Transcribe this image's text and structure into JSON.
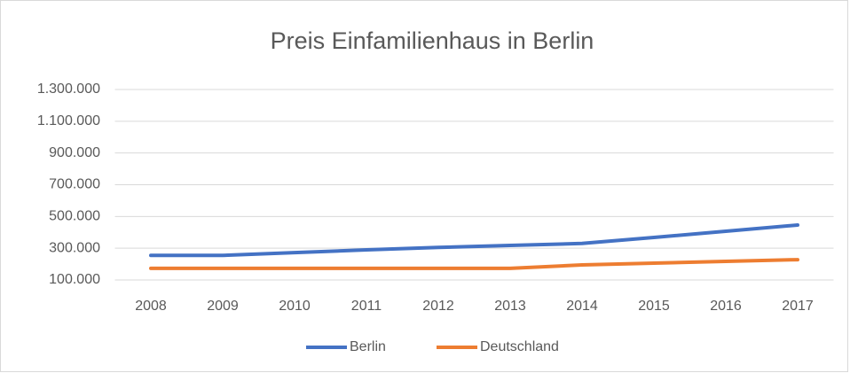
{
  "chart_data": {
    "type": "line",
    "title": "Preis Einfamilienhaus in Berlin",
    "categories": [
      "2008",
      "2009",
      "2010",
      "2011",
      "2012",
      "2013",
      "2014",
      "2015",
      "2016",
      "2017"
    ],
    "series": [
      {
        "name": "Berlin",
        "color": "#4472c4",
        "values": [
          255000,
          255000,
          272000,
          290000,
          305000,
          318000,
          330000,
          368000,
          407000,
          446000
        ]
      },
      {
        "name": "Deutschland",
        "color": "#ed7d31",
        "values": [
          173000,
          173000,
          173000,
          173000,
          173000,
          173000,
          195000,
          206000,
          217000,
          228000
        ]
      }
    ],
    "ylim": [
      100000,
      1300000
    ],
    "yticks": [
      {
        "value": 100000,
        "label": "100.000"
      },
      {
        "value": 300000,
        "label": "300.000"
      },
      {
        "value": 500000,
        "label": "500.000"
      },
      {
        "value": 700000,
        "label": "700.000"
      },
      {
        "value": 900000,
        "label": "900.000"
      },
      {
        "value": 1100000,
        "label": "1.100.000"
      },
      {
        "value": 1300000,
        "label": "1.300.000"
      }
    ],
    "grid": true,
    "legend": "bottom"
  }
}
